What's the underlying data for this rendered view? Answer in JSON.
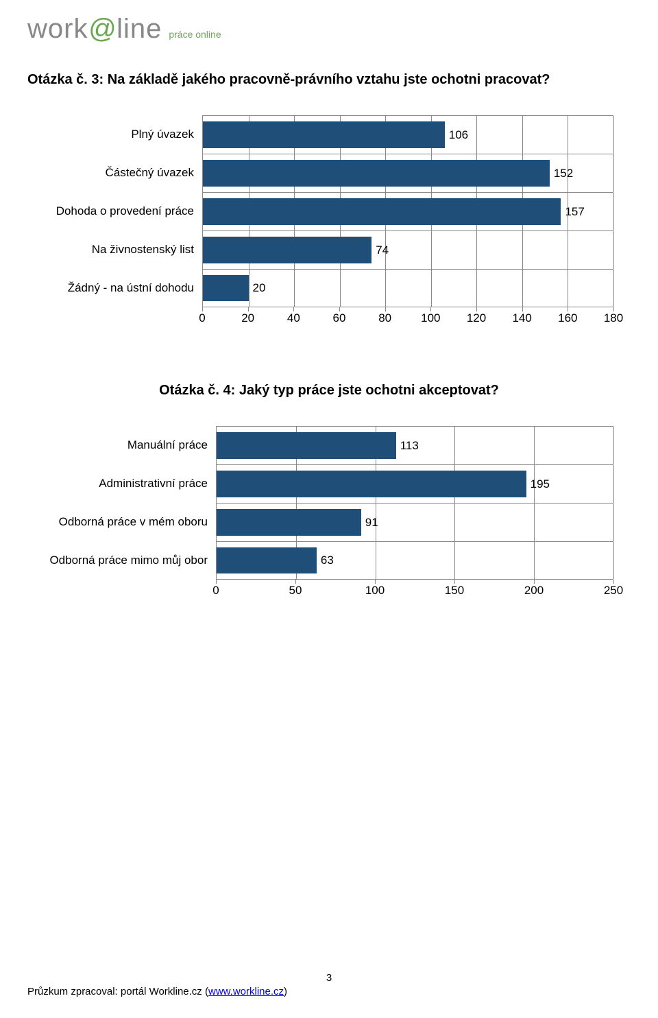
{
  "logo": {
    "part1": "work",
    "part2": "@",
    "part3": "line",
    "tagline": "práce online"
  },
  "chart1": {
    "title": "Otázka č. 3:  Na základě jakého pracovně-právního vztahu jste ochotni pracovat?",
    "type": "bar",
    "orientation": "horizontal",
    "categories": [
      "Plný úvazek",
      "Částečný úvazek",
      "Dohoda o provedení práce",
      "Na živnostenský list",
      "Žádný - na ústní dohodu"
    ],
    "values": [
      106,
      152,
      157,
      74,
      20
    ],
    "bar_color": "#1f4e79",
    "xlim": [
      0,
      180
    ],
    "xtick_step": 20,
    "xticks": [
      0,
      20,
      40,
      60,
      80,
      100,
      120,
      140,
      160,
      180
    ],
    "background_color": "#ffffff",
    "grid_color": "#888888",
    "label_fontsize": 17,
    "value_fontsize": 17,
    "tick_fontsize": 17,
    "title_fontsize": 20,
    "bar_padding": 8
  },
  "chart2": {
    "title": "Otázka č. 4: Jaký typ práce jste ochotni akceptovat?",
    "type": "bar",
    "orientation": "horizontal",
    "categories": [
      "Manuální práce",
      "Administrativní práce",
      "Odborná práce v mém oboru",
      "Odborná práce mimo můj obor"
    ],
    "values": [
      113,
      195,
      91,
      63
    ],
    "bar_color": "#1f4e79",
    "xlim": [
      0,
      250
    ],
    "xtick_step": 50,
    "xticks": [
      0,
      50,
      100,
      150,
      200,
      250
    ],
    "background_color": "#ffffff",
    "grid_color": "#888888",
    "label_fontsize": 17,
    "value_fontsize": 17,
    "tick_fontsize": 17,
    "title_fontsize": 20,
    "bar_padding": 8
  },
  "footer": {
    "page_number": "3",
    "text_prefix": "Průzkum zpracoval: portál Workline.cz (",
    "link_text": "www.workline.cz",
    "text_suffix": ")"
  }
}
